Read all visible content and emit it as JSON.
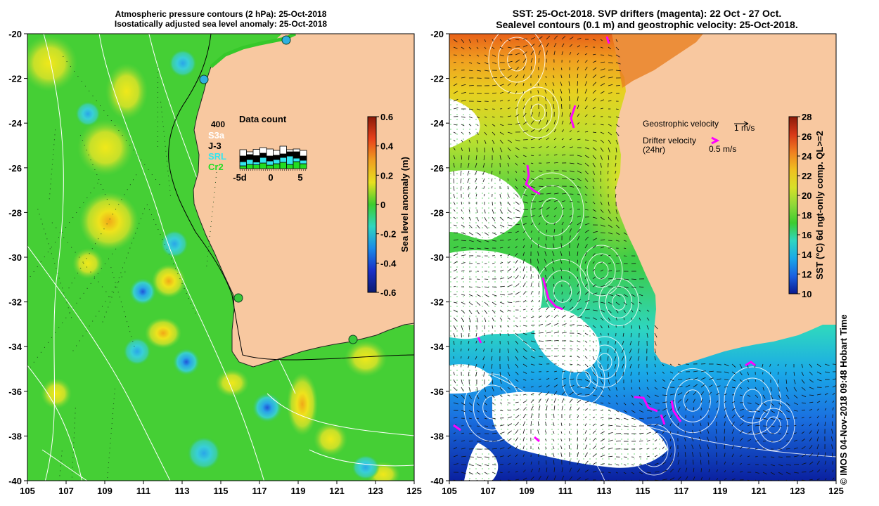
{
  "left_panel": {
    "title_line1": "Atmospheric pressure contours (2 hPa): 25-Oct-2018",
    "title_line2": "Isostatically adjusted sea level anomaly: 25-Oct-2018",
    "x_ticks": [
      "105",
      "107",
      "109",
      "111",
      "113",
      "115",
      "117",
      "119",
      "121",
      "123",
      "125"
    ],
    "y_ticks": [
      "-20",
      "-22",
      "-24",
      "-26",
      "-28",
      "-30",
      "-32",
      "-34",
      "-36",
      "-38",
      "-40"
    ],
    "colorbar": {
      "label": "Sea level anomaly (m)",
      "ticks": [
        "0.6",
        "0.4",
        "0.2",
        "0",
        "-0.2",
        "-0.4",
        "-0.6"
      ],
      "min": -0.6,
      "max": 0.6
    },
    "data_count_inset": {
      "title": "Data count",
      "scale_label": "400",
      "satellites": [
        {
          "name": "S3a",
          "color": "#ffffff"
        },
        {
          "name": "J-3",
          "color": "#000000"
        },
        {
          "name": "SRL",
          "color": "#33e6f0"
        },
        {
          "name": "Cr2",
          "color": "#22dd22"
        }
      ],
      "x_ticks": [
        "-5d",
        "0",
        "5"
      ],
      "days": [
        -5,
        -4,
        -3,
        -2,
        -1,
        0,
        1,
        2,
        3,
        4
      ],
      "stacks": [
        {
          "Cr2": 40,
          "SRL": 60,
          "J-3": 80,
          "S3a": 90
        },
        {
          "Cr2": 60,
          "SRL": 70,
          "J-3": 70,
          "S3a": 40
        },
        {
          "Cr2": 55,
          "SRL": 40,
          "J-3": 90,
          "S3a": 90
        },
        {
          "Cr2": 80,
          "SRL": 80,
          "J-3": 60,
          "S3a": 80
        },
        {
          "Cr2": 50,
          "SRL": 60,
          "J-3": 70,
          "S3a": 100
        },
        {
          "Cr2": 70,
          "SRL": 60,
          "J-3": 60,
          "S3a": 70
        },
        {
          "Cr2": 90,
          "SRL": 70,
          "J-3": 50,
          "S3a": 110
        },
        {
          "Cr2": 60,
          "SRL": 120,
          "J-3": 60,
          "S3a": 30
        },
        {
          "Cr2": 100,
          "SRL": 50,
          "J-3": 90,
          "S3a": 40
        },
        {
          "Cr2": 70,
          "SRL": 50,
          "J-3": 60,
          "S3a": 80
        }
      ]
    }
  },
  "right_panel": {
    "title_line1": "SST: 25-Oct-2018. SVP drifters (magenta): 22 Oct - 27 Oct.",
    "title_line2": "Sealevel contours (0.1 m) and geostrophic velocity: 25-Oct-2018.",
    "x_ticks": [
      "105",
      "107",
      "109",
      "111",
      "113",
      "115",
      "117",
      "119",
      "121",
      "123",
      "125"
    ],
    "y_ticks": [
      "-20",
      "-22",
      "-24",
      "-26",
      "-28",
      "-30",
      "-32",
      "-34",
      "-36",
      "-38",
      "-40"
    ],
    "legend": {
      "geostrophic_label": "Geostrophic velocity",
      "geostrophic_scale": "1 m/s",
      "drifter_label_line1": "Drifter velocity",
      "drifter_label_line2": "(24hr)",
      "drifter_scale": "0.5 m/s"
    },
    "colorbar": {
      "label": "SST (°C) 6d ngt-only comp. QL>=2",
      "ticks": [
        "28",
        "26",
        "24",
        "22",
        "20",
        "18",
        "16",
        "14",
        "12",
        "10"
      ],
      "min": 10,
      "max": 28
    }
  },
  "credit": "© IMOS 04-Nov-2018 09:48 Hobart Time",
  "colors": {
    "land": "#f8c8a0",
    "ocean_green": "#3dcc2f",
    "magenta": "#ff00ff",
    "contour_white": "#ffffff",
    "coast_black": "#000000"
  }
}
